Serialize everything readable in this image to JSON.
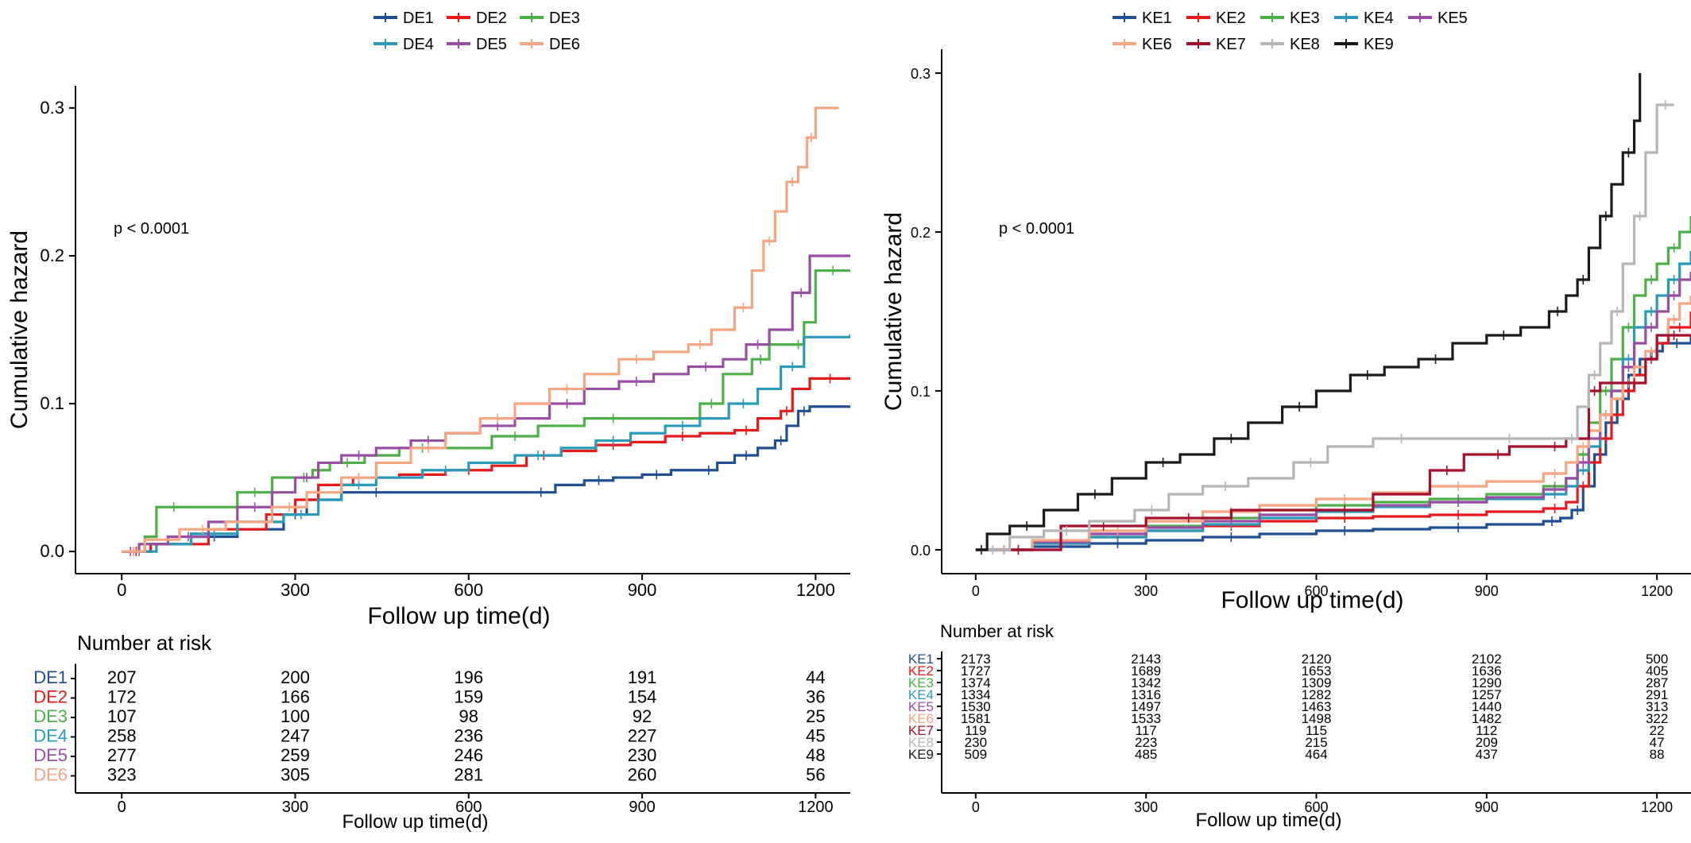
{
  "chart_data": [
    {
      "type": "line",
      "xlabel": "Follow up time(d)",
      "ylabel": "Cumulative hazard",
      "xlim": [
        -80,
        1260
      ],
      "ylim": [
        -0.015,
        0.315
      ],
      "xticks": [
        0,
        300,
        600,
        900,
        1200
      ],
      "yticks": [
        0.0,
        0.1,
        0.2,
        0.3
      ],
      "ytick_labels": [
        "0.0",
        "0.1",
        "0.2",
        "0.3"
      ],
      "grid": false,
      "legend_position": "top",
      "annotation": "p < 0.0001",
      "series": [
        {
          "name": "DE1",
          "color": "#1F4E91",
          "x": [
            0,
            40,
            120,
            200,
            280,
            320,
            380,
            500,
            700,
            750,
            800,
            850,
            900,
            950,
            1000,
            1030,
            1060,
            1100,
            1130,
            1150,
            1170,
            1190,
            1260
          ],
          "y": [
            0.0,
            0.005,
            0.01,
            0.015,
            0.025,
            0.035,
            0.04,
            0.04,
            0.04,
            0.045,
            0.048,
            0.05,
            0.052,
            0.055,
            0.055,
            0.06,
            0.065,
            0.07,
            0.075,
            0.085,
            0.095,
            0.098,
            0.098
          ]
        },
        {
          "name": "DE2",
          "color": "#E41A1C",
          "x": [
            0,
            50,
            150,
            250,
            300,
            340,
            400,
            480,
            560,
            640,
            700,
            760,
            820,
            880,
            940,
            1000,
            1060,
            1100,
            1140,
            1160,
            1190,
            1260
          ],
          "y": [
            0.0,
            0.005,
            0.015,
            0.025,
            0.035,
            0.045,
            0.05,
            0.052,
            0.055,
            0.058,
            0.065,
            0.068,
            0.072,
            0.074,
            0.078,
            0.08,
            0.082,
            0.09,
            0.095,
            0.11,
            0.117,
            0.117
          ]
        },
        {
          "name": "DE3",
          "color": "#4DAF4A",
          "x": [
            0,
            40,
            60,
            120,
            200,
            260,
            300,
            330,
            360,
            420,
            480,
            560,
            640,
            720,
            800,
            900,
            1000,
            1040,
            1090,
            1120,
            1160,
            1180,
            1200,
            1260
          ],
          "y": [
            0.0,
            0.01,
            0.03,
            0.03,
            0.04,
            0.05,
            0.05,
            0.055,
            0.06,
            0.065,
            0.07,
            0.07,
            0.078,
            0.085,
            0.09,
            0.09,
            0.1,
            0.12,
            0.13,
            0.14,
            0.14,
            0.155,
            0.19,
            0.19
          ]
        },
        {
          "name": "DE4",
          "color": "#2B9AB8",
          "x": [
            0,
            60,
            120,
            200,
            280,
            340,
            380,
            440,
            520,
            600,
            680,
            760,
            820,
            880,
            940,
            1000,
            1050,
            1100,
            1140,
            1180,
            1260
          ],
          "y": [
            0.0,
            0.005,
            0.012,
            0.02,
            0.025,
            0.035,
            0.045,
            0.05,
            0.055,
            0.06,
            0.065,
            0.07,
            0.075,
            0.08,
            0.085,
            0.09,
            0.1,
            0.11,
            0.125,
            0.145,
            0.147
          ]
        },
        {
          "name": "DE5",
          "color": "#984EA3",
          "x": [
            0,
            30,
            80,
            150,
            200,
            260,
            300,
            340,
            380,
            440,
            500,
            560,
            620,
            680,
            740,
            800,
            860,
            920,
            980,
            1040,
            1080,
            1120,
            1160,
            1190,
            1260
          ],
          "y": [
            0.0,
            0.005,
            0.01,
            0.02,
            0.03,
            0.04,
            0.05,
            0.06,
            0.065,
            0.07,
            0.075,
            0.08,
            0.085,
            0.09,
            0.1,
            0.11,
            0.115,
            0.12,
            0.125,
            0.13,
            0.14,
            0.15,
            0.175,
            0.2,
            0.2
          ]
        },
        {
          "name": "DE6",
          "color": "#F4A582",
          "x": [
            0,
            40,
            100,
            180,
            260,
            320,
            380,
            440,
            500,
            560,
            620,
            680,
            740,
            800,
            860,
            920,
            980,
            1020,
            1060,
            1090,
            1110,
            1130,
            1150,
            1170,
            1185,
            1200,
            1240
          ],
          "y": [
            0.0,
            0.008,
            0.015,
            0.02,
            0.03,
            0.04,
            0.05,
            0.06,
            0.07,
            0.08,
            0.09,
            0.1,
            0.11,
            0.12,
            0.13,
            0.135,
            0.14,
            0.15,
            0.165,
            0.19,
            0.21,
            0.23,
            0.25,
            0.26,
            0.28,
            0.3,
            0.3
          ]
        }
      ],
      "risk_table": {
        "title": "Number at risk",
        "xlabel": "Follow up time(d)",
        "rows": [
          {
            "name": "DE1",
            "color": "#1F4E91",
            "values": [
              "207",
              "200",
              "196",
              "191",
              "44"
            ]
          },
          {
            "name": "DE2",
            "color": "#E41A1C",
            "values": [
              "172",
              "166",
              "159",
              "154",
              "36"
            ]
          },
          {
            "name": "DE3",
            "color": "#4DAF4A",
            "values": [
              "107",
              "100",
              "98",
              "92",
              "25"
            ]
          },
          {
            "name": "DE4",
            "color": "#2B9AB8",
            "values": [
              "258",
              "247",
              "236",
              "227",
              "45"
            ]
          },
          {
            "name": "DE5",
            "color": "#984EA3",
            "values": [
              "277",
              "259",
              "246",
              "230",
              "48"
            ]
          },
          {
            "name": "DE6",
            "color": "#F4A582",
            "values": [
              "323",
              "305",
              "281",
              "260",
              "56"
            ]
          }
        ]
      }
    },
    {
      "type": "line",
      "xlabel": "Follow up time(d)",
      "ylabel": "Cumulative hazard",
      "xlim": [
        -60,
        1260
      ],
      "ylim": [
        -0.015,
        0.315
      ],
      "xticks": [
        0,
        300,
        600,
        900,
        1200
      ],
      "yticks": [
        0.0,
        0.1,
        0.2,
        0.3
      ],
      "ytick_labels": [
        "0.0",
        "0.1",
        "0.2",
        "0.3"
      ],
      "grid": false,
      "legend_position": "top",
      "annotation": "p < 0.0001",
      "series": [
        {
          "name": "KE1",
          "color": "#1F4E91",
          "x": [
            0,
            100,
            200,
            300,
            400,
            500,
            600,
            700,
            800,
            900,
            1000,
            1030,
            1050,
            1070,
            1090,
            1110,
            1130,
            1150,
            1170,
            1190,
            1210,
            1260
          ],
          "y": [
            0.0,
            0.002,
            0.004,
            0.006,
            0.008,
            0.01,
            0.012,
            0.013,
            0.014,
            0.016,
            0.018,
            0.02,
            0.025,
            0.04,
            0.06,
            0.08,
            0.095,
            0.11,
            0.12,
            0.125,
            0.13,
            0.135
          ]
        },
        {
          "name": "KE2",
          "color": "#E41A1C",
          "x": [
            0,
            100,
            200,
            300,
            400,
            500,
            600,
            700,
            800,
            900,
            1000,
            1040,
            1060,
            1080,
            1100,
            1120,
            1140,
            1160,
            1180,
            1200,
            1220,
            1260
          ],
          "y": [
            0.0,
            0.004,
            0.008,
            0.012,
            0.015,
            0.018,
            0.02,
            0.021,
            0.022,
            0.024,
            0.026,
            0.03,
            0.04,
            0.055,
            0.07,
            0.085,
            0.1,
            0.11,
            0.12,
            0.13,
            0.14,
            0.15
          ]
        },
        {
          "name": "KE3",
          "color": "#4DAF4A",
          "x": [
            0,
            100,
            200,
            300,
            400,
            500,
            600,
            700,
            800,
            900,
            1000,
            1040,
            1060,
            1080,
            1100,
            1120,
            1140,
            1160,
            1180,
            1200,
            1220,
            1240,
            1260
          ],
          "y": [
            0.0,
            0.005,
            0.01,
            0.015,
            0.02,
            0.025,
            0.028,
            0.03,
            0.032,
            0.035,
            0.04,
            0.045,
            0.06,
            0.08,
            0.1,
            0.12,
            0.14,
            0.16,
            0.17,
            0.18,
            0.19,
            0.2,
            0.21
          ]
        },
        {
          "name": "KE4",
          "color": "#2B9AB8",
          "x": [
            0,
            100,
            200,
            300,
            400,
            500,
            600,
            700,
            800,
            900,
            1000,
            1040,
            1060,
            1080,
            1100,
            1120,
            1140,
            1160,
            1180,
            1200,
            1220,
            1240,
            1260
          ],
          "y": [
            0.0,
            0.004,
            0.008,
            0.012,
            0.016,
            0.02,
            0.024,
            0.027,
            0.03,
            0.032,
            0.035,
            0.04,
            0.05,
            0.065,
            0.085,
            0.1,
            0.12,
            0.14,
            0.15,
            0.16,
            0.17,
            0.18,
            0.188
          ]
        },
        {
          "name": "KE5",
          "color": "#984EA3",
          "x": [
            0,
            100,
            200,
            300,
            400,
            500,
            600,
            700,
            800,
            900,
            1000,
            1040,
            1060,
            1080,
            1100,
            1120,
            1140,
            1160,
            1180,
            1200,
            1220,
            1240,
            1260
          ],
          "y": [
            0.0,
            0.005,
            0.01,
            0.014,
            0.018,
            0.022,
            0.025,
            0.028,
            0.03,
            0.033,
            0.038,
            0.045,
            0.055,
            0.07,
            0.085,
            0.1,
            0.115,
            0.13,
            0.14,
            0.15,
            0.16,
            0.17,
            0.175
          ]
        },
        {
          "name": "KE6",
          "color": "#F4A582",
          "x": [
            0,
            100,
            200,
            300,
            400,
            500,
            600,
            700,
            800,
            900,
            1000,
            1040,
            1060,
            1080,
            1100,
            1120,
            1140,
            1160,
            1180,
            1200,
            1220,
            1240,
            1260
          ],
          "y": [
            0.0,
            0.006,
            0.012,
            0.018,
            0.024,
            0.028,
            0.032,
            0.036,
            0.04,
            0.043,
            0.048,
            0.055,
            0.065,
            0.075,
            0.085,
            0.095,
            0.105,
            0.115,
            0.125,
            0.135,
            0.145,
            0.155,
            0.16
          ]
        },
        {
          "name": "KE7",
          "color": "#A50F2E",
          "x": [
            0,
            150,
            150,
            300,
            300,
            450,
            600,
            700,
            800,
            860,
            900,
            940,
            1000,
            1040,
            1080,
            1100,
            1140,
            1180,
            1200,
            1260
          ],
          "y": [
            0.0,
            0.0,
            0.015,
            0.015,
            0.02,
            0.025,
            0.025,
            0.035,
            0.05,
            0.06,
            0.06,
            0.065,
            0.065,
            0.07,
            0.1,
            0.105,
            0.105,
            0.12,
            0.135,
            0.135
          ]
        },
        {
          "name": "KE8",
          "color": "#B3B7B8",
          "x": [
            0,
            60,
            120,
            200,
            280,
            340,
            400,
            480,
            560,
            620,
            700,
            800,
            900,
            980,
            1040,
            1060,
            1080,
            1100,
            1120,
            1140,
            1160,
            1180,
            1200,
            1230
          ],
          "y": [
            0.0,
            0.008,
            0.012,
            0.018,
            0.025,
            0.035,
            0.04,
            0.045,
            0.055,
            0.065,
            0.07,
            0.07,
            0.07,
            0.07,
            0.07,
            0.09,
            0.11,
            0.13,
            0.15,
            0.18,
            0.21,
            0.25,
            0.28,
            0.28
          ]
        },
        {
          "name": "KE9",
          "color": "#1A1A1A",
          "x": [
            0,
            20,
            60,
            120,
            180,
            240,
            300,
            360,
            420,
            480,
            540,
            600,
            660,
            720,
            780,
            840,
            900,
            960,
            1010,
            1040,
            1060,
            1080,
            1100,
            1120,
            1140,
            1160,
            1170
          ],
          "y": [
            0.0,
            0.01,
            0.015,
            0.025,
            0.035,
            0.045,
            0.055,
            0.06,
            0.07,
            0.08,
            0.09,
            0.1,
            0.11,
            0.115,
            0.12,
            0.13,
            0.135,
            0.14,
            0.15,
            0.16,
            0.17,
            0.19,
            0.21,
            0.23,
            0.25,
            0.27,
            0.3
          ]
        }
      ],
      "risk_table": {
        "title": "Number at risk",
        "xlabel": "Follow up time(d)",
        "rows": [
          {
            "name": "KE1",
            "color": "#1F4E91",
            "values": [
              "2173",
              "2143",
              "2120",
              "2102",
              "500"
            ]
          },
          {
            "name": "KE2",
            "color": "#E41A1C",
            "values": [
              "1727",
              "1689",
              "1653",
              "1636",
              "405"
            ]
          },
          {
            "name": "KE3",
            "color": "#4DAF4A",
            "values": [
              "1374",
              "1342",
              "1309",
              "1290",
              "287"
            ]
          },
          {
            "name": "KE4",
            "color": "#2B9AB8",
            "values": [
              "1334",
              "1316",
              "1282",
              "1257",
              "291"
            ]
          },
          {
            "name": "KE5",
            "color": "#984EA3",
            "values": [
              "1530",
              "1497",
              "1463",
              "1440",
              "313"
            ]
          },
          {
            "name": "KE6",
            "color": "#F4A582",
            "values": [
              "1581",
              "1533",
              "1498",
              "1482",
              "322"
            ]
          },
          {
            "name": "KE7",
            "color": "#A50F2E",
            "values": [
              "119",
              "117",
              "115",
              "112",
              "22"
            ]
          },
          {
            "name": "KE8",
            "color": "#B3B7B8",
            "values": [
              "230",
              "223",
              "215",
              "209",
              "47"
            ]
          },
          {
            "name": "KE9",
            "color": "#1A1A1A",
            "values": [
              "509",
              "485",
              "464",
              "437",
              "88"
            ]
          }
        ]
      }
    }
  ]
}
